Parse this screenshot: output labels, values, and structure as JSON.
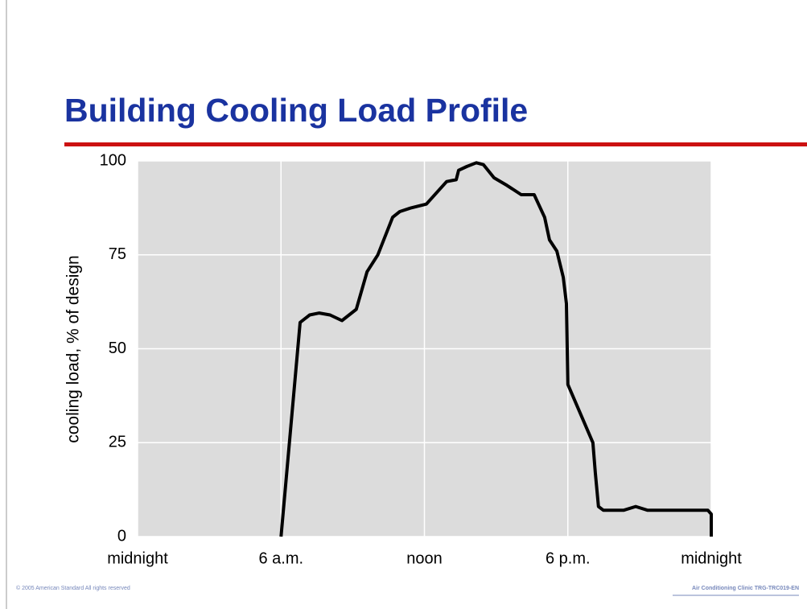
{
  "chart_data": {
    "type": "line",
    "title": "Building Cooling Load Profile",
    "y_label": "cooling load, % of design",
    "xlim": [
      0,
      24
    ],
    "xticks": [
      {
        "value": 0,
        "label": "midnight"
      },
      {
        "value": 6,
        "label": "6 a.m."
      },
      {
        "value": 12,
        "label": "noon"
      },
      {
        "value": 18,
        "label": "6 p.m."
      },
      {
        "value": 24,
        "label": "midnight"
      }
    ],
    "ylim": [
      0,
      100
    ],
    "yticks": [
      0,
      25,
      50,
      75,
      100
    ],
    "grid": true,
    "x": [
      6,
      6.8,
      7.2,
      7.6,
      8.05,
      8.55,
      9.15,
      9.6,
      10.05,
      10.67,
      10.97,
      11.44,
      12.08,
      12.93,
      13.33,
      13.43,
      13.77,
      14.17,
      14.47,
      14.91,
      15.45,
      16.05,
      16.59,
      17.03,
      17.23,
      17.54,
      17.81,
      17.94,
      18.0,
      19.05,
      19.15,
      19.28,
      19.49,
      20.33,
      20.84,
      21.34,
      23.86,
      24,
      24
    ],
    "series": [
      {
        "color": "#000000",
        "values": [
          0,
          57,
          59,
          59.5,
          59,
          57.5,
          60.5,
          70.5,
          75,
          85,
          86.5,
          87.5,
          88.5,
          94.5,
          95,
          97.5,
          98.5,
          99.5,
          99,
          95.5,
          93.5,
          91,
          91,
          85,
          79,
          76,
          69,
          62,
          40.5,
          25,
          17,
          8,
          7,
          7,
          8,
          7,
          7,
          6,
          0
        ]
      }
    ]
  },
  "footer": {
    "left": "© 2005 American Standard   All rights reserved",
    "right": "Air Conditioning Clinic TRG-TRC019-EN"
  }
}
